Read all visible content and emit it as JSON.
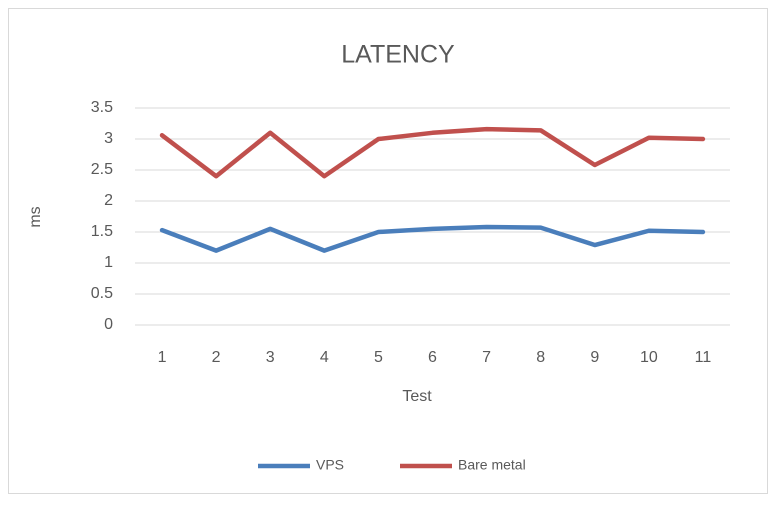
{
  "chart_data": {
    "type": "line",
    "title": "LATENCY",
    "x_label": "Test",
    "y_label": "ms",
    "categories": [
      "1",
      "2",
      "3",
      "4",
      "5",
      "6",
      "7",
      "8",
      "9",
      "10",
      "11"
    ],
    "series": [
      {
        "name": "VPS",
        "color": "#4a7ebb",
        "values": [
          1.53,
          1.2,
          1.55,
          1.2,
          1.5,
          1.55,
          1.58,
          1.57,
          1.29,
          1.52,
          1.5
        ]
      },
      {
        "name": "Bare metal",
        "color": "#c0504d",
        "values": [
          3.06,
          2.4,
          3.1,
          2.4,
          3.0,
          3.1,
          3.16,
          3.14,
          2.58,
          3.02,
          3.0
        ]
      }
    ],
    "ylim": [
      0,
      3.5
    ],
    "yticks": [
      0,
      0.5,
      1,
      1.5,
      2,
      2.5,
      3,
      3.5
    ],
    "grid": true,
    "legend": "bottom"
  }
}
